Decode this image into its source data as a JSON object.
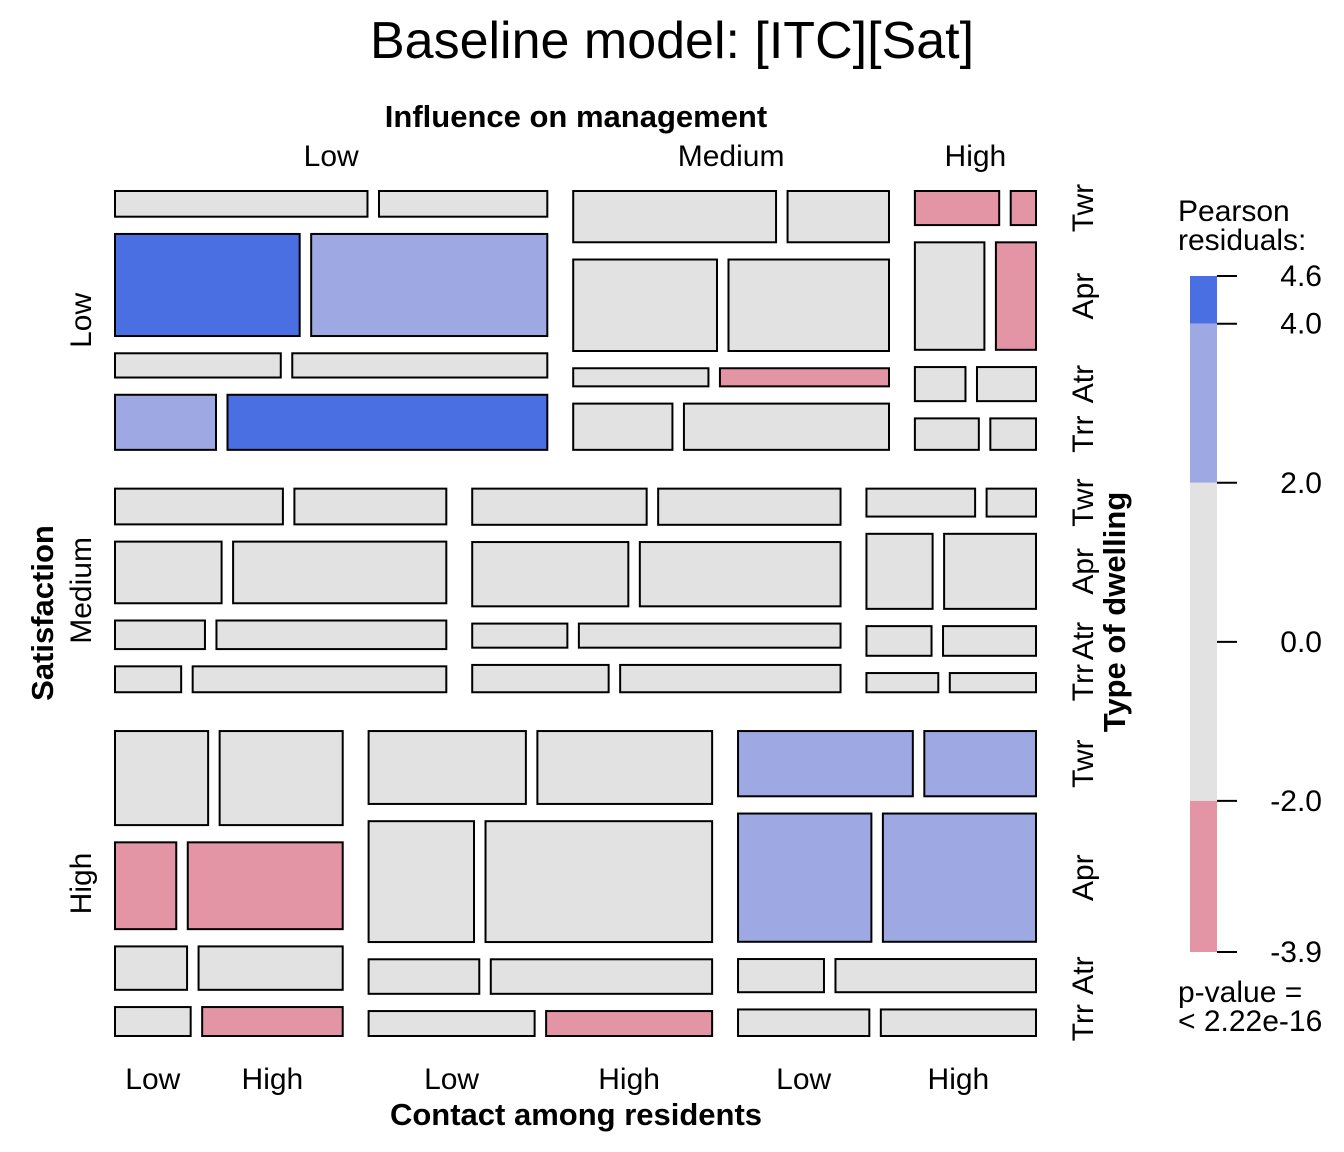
{
  "chart_data": {
    "type": "mosaic",
    "title": "Baseline model: [ITC][Sat]",
    "variables": {
      "satisfaction": {
        "label": "Satisfaction",
        "levels": [
          "Low",
          "Medium",
          "High"
        ]
      },
      "influence": {
        "label": "Influence on management",
        "levels": [
          "Low",
          "Medium",
          "High"
        ]
      },
      "type": {
        "label": "Type of dwelling",
        "levels": [
          "Twr",
          "Apr",
          "Atr",
          "Trr"
        ]
      },
      "contact": {
        "label": "Contact among residents",
        "levels": [
          "Low",
          "High"
        ]
      }
    },
    "freq": [
      [
        [
          [
            21,
            14
          ],
          [
            61,
            78
          ],
          [
            13,
            20
          ],
          [
            18,
            57
          ]
        ],
        [
          [
            34,
            17
          ],
          [
            43,
            48
          ],
          [
            8,
            10
          ],
          [
            15,
            31
          ]
        ],
        [
          [
            10,
            3
          ],
          [
            26,
            15
          ],
          [
            6,
            7
          ],
          [
            7,
            5
          ]
        ]
      ],
      [
        [
          [
            21,
            19
          ],
          [
            23,
            46
          ],
          [
            9,
            23
          ],
          [
            6,
            23
          ]
        ],
        [
          [
            22,
            23
          ],
          [
            35,
            45
          ],
          [
            8,
            22
          ],
          [
            13,
            21
          ]
        ],
        [
          [
            11,
            5
          ],
          [
            18,
            25
          ],
          [
            7,
            10
          ],
          [
            5,
            6
          ]
        ]
      ],
      [
        [
          [
            28,
            37
          ],
          [
            17,
            43
          ],
          [
            10,
            20
          ],
          [
            7,
            13
          ]
        ],
        [
          [
            36,
            40
          ],
          [
            40,
            86
          ],
          [
            12,
            24
          ],
          [
            13,
            13
          ]
        ],
        [
          [
            36,
            23
          ],
          [
            54,
            62
          ],
          [
            9,
            21
          ],
          [
            11,
            13
          ]
        ]
      ]
    ],
    "residual_level": [
      [
        [
          [
            0,
            0
          ],
          [
            2,
            1
          ],
          [
            0,
            0
          ],
          [
            1,
            2
          ]
        ],
        [
          [
            0,
            0
          ],
          [
            0,
            0
          ],
          [
            0,
            -1
          ],
          [
            0,
            0
          ]
        ],
        [
          [
            -1,
            -1
          ],
          [
            0,
            -1
          ],
          [
            0,
            0
          ],
          [
            0,
            0
          ]
        ]
      ],
      [
        [
          [
            0,
            0
          ],
          [
            0,
            0
          ],
          [
            0,
            0
          ],
          [
            0,
            0
          ]
        ],
        [
          [
            0,
            0
          ],
          [
            0,
            0
          ],
          [
            0,
            0
          ],
          [
            0,
            0
          ]
        ],
        [
          [
            0,
            0
          ],
          [
            0,
            0
          ],
          [
            0,
            0
          ],
          [
            0,
            0
          ]
        ]
      ],
      [
        [
          [
            0,
            0
          ],
          [
            -1,
            -1
          ],
          [
            0,
            0
          ],
          [
            0,
            -1
          ]
        ],
        [
          [
            0,
            0
          ],
          [
            0,
            0
          ],
          [
            0,
            0
          ],
          [
            0,
            -1
          ]
        ],
        [
          [
            1,
            1
          ],
          [
            1,
            1
          ],
          [
            0,
            0
          ],
          [
            0,
            0
          ]
        ]
      ]
    ],
    "legend": {
      "title": [
        "Pearson",
        "residuals:"
      ],
      "range": [
        -3.9,
        4.6
      ],
      "ticks": [
        "4.6",
        "4.0",
        "2.0",
        "0.0",
        "-2.0",
        "-3.9"
      ],
      "bands": [
        {
          "level": 2,
          "from": 4.0,
          "to": 4.6,
          "color": "#4A6FE3"
        },
        {
          "level": 1,
          "from": 2.0,
          "to": 4.0,
          "color": "#9EA8E3"
        },
        {
          "level": 0,
          "from": -2.0,
          "to": 2.0,
          "color": "#E2E2E2"
        },
        {
          "level": -1,
          "from": -3.9,
          "to": -2.0,
          "color": "#E495A5"
        }
      ],
      "pvalue": [
        "p-value =",
        "< 2.22e-16"
      ]
    }
  }
}
